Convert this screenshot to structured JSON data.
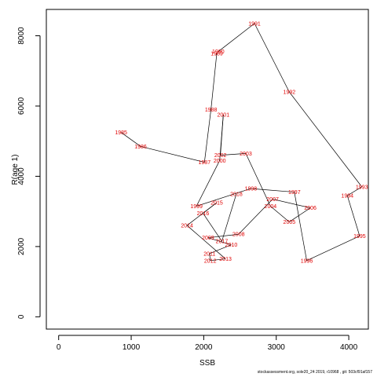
{
  "chart_data": {
    "type": "line",
    "title": "",
    "xlabel": "SSB",
    "ylabel": "R(age 1)",
    "xlim": [
      -170,
      4270
    ],
    "ylim": [
      -350,
      8750
    ],
    "xticks": [
      0,
      1000,
      2000,
      3000,
      4000
    ],
    "yticks": [
      0,
      2000,
      4000,
      6000,
      8000
    ],
    "grid": false,
    "colors": {
      "line": "#000000",
      "label": "#e00000",
      "axis": "#000000"
    },
    "points": [
      {
        "year": "1985",
        "x": 860,
        "y": 5250
      },
      {
        "year": "1986",
        "x": 1130,
        "y": 4850
      },
      {
        "year": "1987",
        "x": 2010,
        "y": 4400
      },
      {
        "year": "1988",
        "x": 2100,
        "y": 5900
      },
      {
        "year": "1989",
        "x": 2180,
        "y": 7500
      },
      {
        "year": "1990",
        "x": 2200,
        "y": 7550
      },
      {
        "year": "1991",
        "x": 2700,
        "y": 8350
      },
      {
        "year": "1992",
        "x": 3180,
        "y": 6400
      },
      {
        "year": "1993",
        "x": 4180,
        "y": 3700
      },
      {
        "year": "1994",
        "x": 3980,
        "y": 3450
      },
      {
        "year": "1995",
        "x": 4150,
        "y": 2300
      },
      {
        "year": "1996",
        "x": 3420,
        "y": 1600
      },
      {
        "year": "1997",
        "x": 3250,
        "y": 3550
      },
      {
        "year": "1998",
        "x": 2650,
        "y": 3650
      },
      {
        "year": "1999",
        "x": 1900,
        "y": 3150
      },
      {
        "year": "2000",
        "x": 2220,
        "y": 4450
      },
      {
        "year": "2001",
        "x": 2270,
        "y": 5750
      },
      {
        "year": "2002",
        "x": 2230,
        "y": 4600
      },
      {
        "year": "2003",
        "x": 2580,
        "y": 4650
      },
      {
        "year": "2004",
        "x": 2920,
        "y": 3150
      },
      {
        "year": "2005",
        "x": 3180,
        "y": 2700
      },
      {
        "year": "2006",
        "x": 3470,
        "y": 3100
      },
      {
        "year": "2007",
        "x": 2950,
        "y": 3350
      },
      {
        "year": "2008",
        "x": 2480,
        "y": 2350
      },
      {
        "year": "2009",
        "x": 2060,
        "y": 2250
      },
      {
        "year": "2010",
        "x": 2380,
        "y": 2050
      },
      {
        "year": "2011",
        "x": 2080,
        "y": 1800
      },
      {
        "year": "2012",
        "x": 2090,
        "y": 1600
      },
      {
        "year": "2013",
        "x": 2300,
        "y": 1650
      },
      {
        "year": "2014",
        "x": 1770,
        "y": 2600
      },
      {
        "year": "2015",
        "x": 2180,
        "y": 3250
      },
      {
        "year": "2016",
        "x": 1990,
        "y": 2950
      },
      {
        "year": "2017",
        "x": 2250,
        "y": 2150
      },
      {
        "year": "2018",
        "x": 2450,
        "y": 3500
      }
    ]
  },
  "footer": {
    "text": "stockassessment.org, sole20_24 2019, r10968 , git: 503cf91af157"
  }
}
